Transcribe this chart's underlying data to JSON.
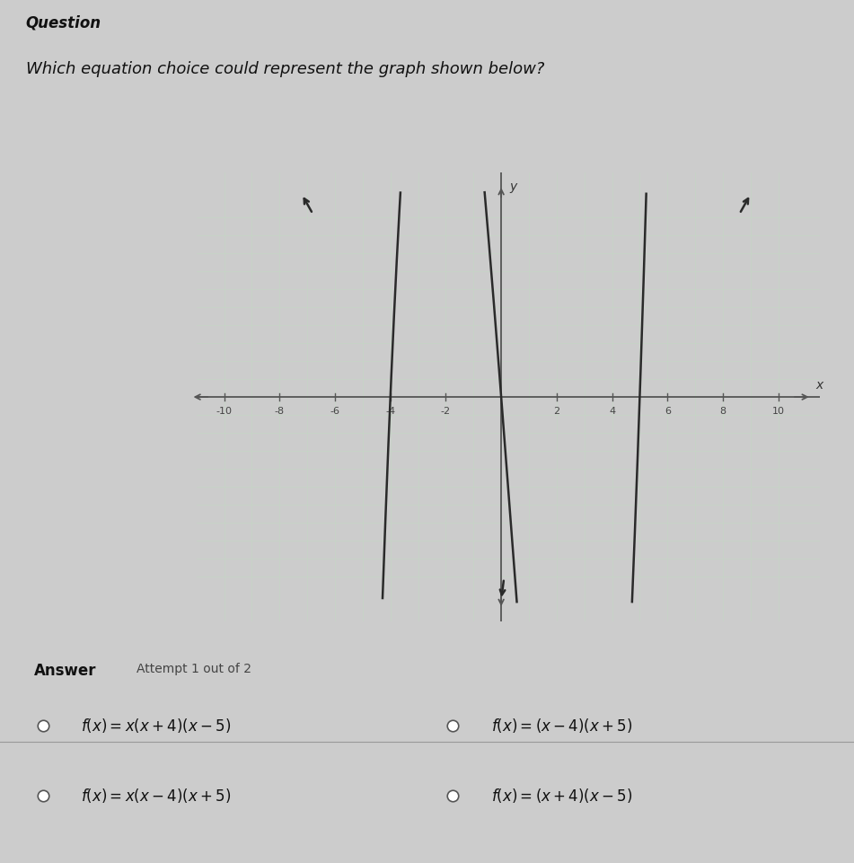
{
  "question_label": "Question",
  "question_text": "Which equation choice could represent the graph shown below?",
  "xlim": [
    -11,
    11
  ],
  "ylim": [
    -13,
    13
  ],
  "graph_ylim_display": [
    -10,
    10
  ],
  "xtick_vals": [
    -10,
    -8,
    -6,
    -4,
    -2,
    2,
    4,
    6,
    8,
    10
  ],
  "curve_color": "#2a2a2a",
  "grid_color_minor": "#c5d5c5",
  "grid_color_major": "#b8ccb8",
  "axis_color": "#555555",
  "bg_color_graph": "#dfe8df",
  "bg_color_outer": "#cccccc",
  "bg_color_answer": "#e8e8e8",
  "answer_label": "Answer",
  "attempt_label": "Attempt 1 out of 2",
  "choices_left": [
    "f(x) = x(x + 4)(x − 5)",
    "f(x) = x(x − 4)(x + 5)"
  ],
  "choices_right": [
    "f(x) = (x − 4)(x + 5)",
    "f(x) = (x + 4)(x − 5)"
  ]
}
